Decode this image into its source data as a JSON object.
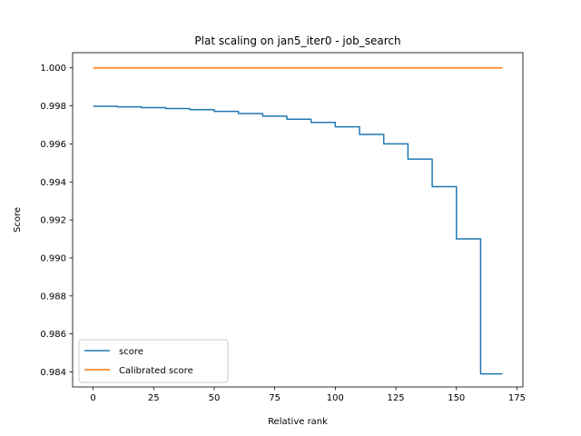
{
  "chart_data": {
    "type": "line",
    "title": "Plat scaling on jan5_iter0 - job_search",
    "xlabel": "Relative rank",
    "ylabel": "Score",
    "xlim": [
      -8.45,
      177.45
    ],
    "ylim": [
      0.98321,
      1.0008
    ],
    "xticks": [
      0,
      25,
      50,
      75,
      100,
      125,
      150,
      175
    ],
    "xtick_labels": [
      "0",
      "25",
      "50",
      "75",
      "100",
      "125",
      "150",
      "175"
    ],
    "yticks": [
      0.984,
      0.986,
      0.988,
      0.99,
      0.992,
      0.994,
      0.996,
      0.998,
      1.0
    ],
    "ytick_labels": [
      "0.984",
      "0.986",
      "0.988",
      "0.990",
      "0.992",
      "0.994",
      "0.996",
      "0.998",
      "1.000"
    ],
    "grid": false,
    "legend_position": "lower-left",
    "series": [
      {
        "name": "score",
        "color": "#1f77b4",
        "step": true,
        "x": [
          0,
          10,
          20,
          30,
          40,
          50,
          60,
          70,
          80,
          90,
          100,
          110,
          120,
          130,
          140,
          150,
          160,
          169
        ],
        "y": [
          0.99798,
          0.99795,
          0.99791,
          0.99786,
          0.9978,
          0.99771,
          0.9976,
          0.99746,
          0.9973,
          0.99713,
          0.9969,
          0.9965,
          0.996,
          0.9952,
          0.99375,
          0.991,
          0.9839,
          0.9839
        ]
      },
      {
        "name": "Calibrated score",
        "color": "#ff7f0e",
        "step": false,
        "x": [
          0,
          169
        ],
        "y": [
          1.0,
          1.0
        ]
      }
    ]
  }
}
